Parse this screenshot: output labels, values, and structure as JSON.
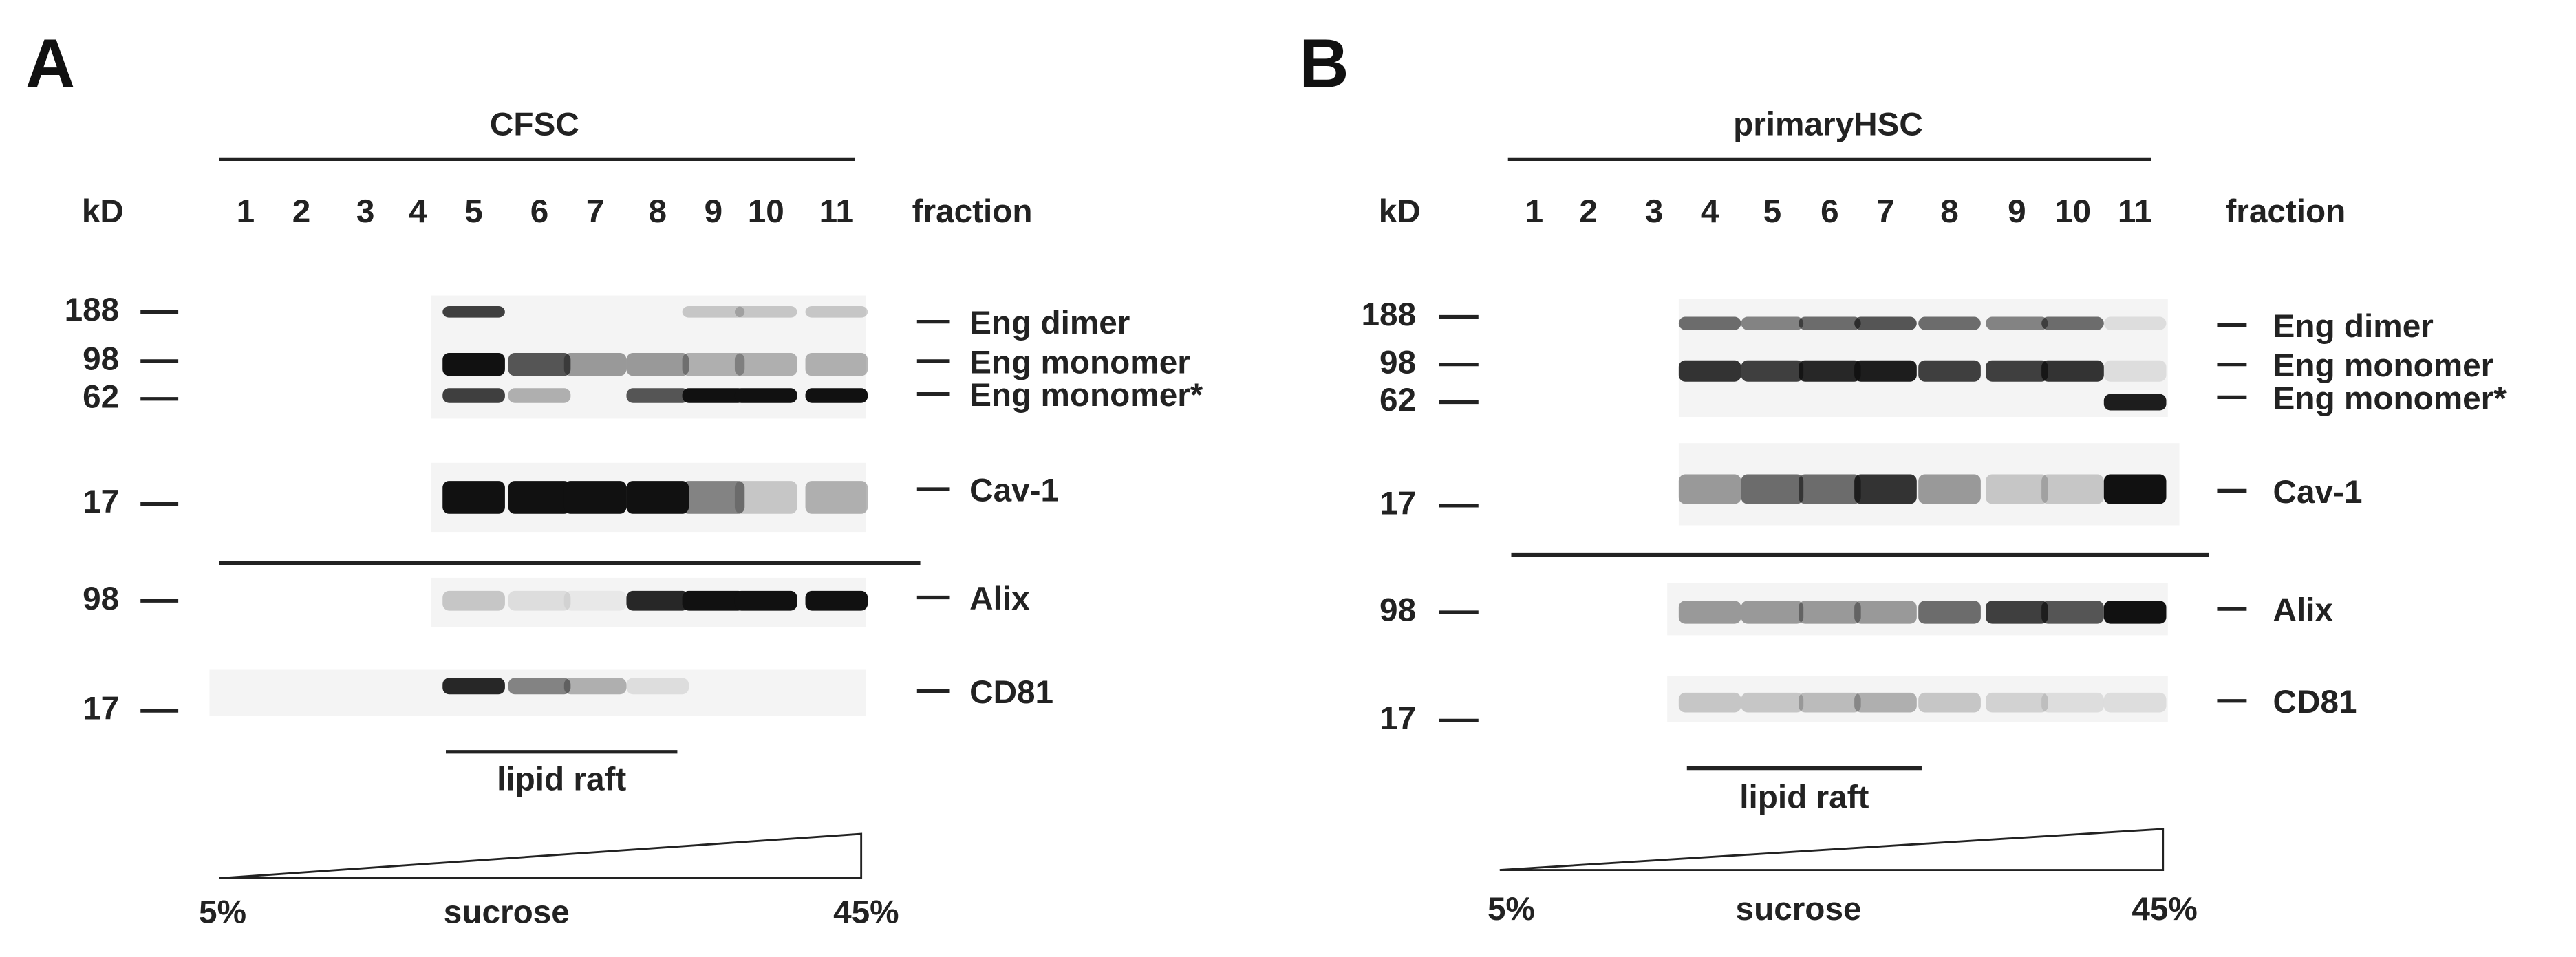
{
  "panels": [
    {
      "label": "A",
      "sample": "CFSC",
      "kd_header": "kD",
      "fraction_header": "fraction",
      "fractions": [
        "1",
        "2",
        "3",
        "4",
        "5",
        "6",
        "7",
        "8",
        "9",
        "10",
        "11"
      ],
      "markers": [
        188,
        98,
        62,
        17,
        98,
        17
      ],
      "bands": [
        "Eng dimer",
        "Eng monomer",
        "Eng monomer*",
        "Cav-1",
        "Alix",
        "CD81"
      ],
      "raft_label": "lipid raft",
      "gradient": {
        "low": "5%",
        "label": "sucrose",
        "high": "45%"
      }
    },
    {
      "label": "B",
      "sample": "primaryHSC",
      "kd_header": "kD",
      "fraction_header": "fraction",
      "fractions": [
        "1",
        "2",
        "3",
        "4",
        "5",
        "6",
        "7",
        "8",
        "9",
        "10",
        "11"
      ],
      "markers": [
        188,
        98,
        62,
        17,
        98,
        17
      ],
      "bands": [
        "Eng dimer",
        "Eng monomer",
        "Eng monomer*",
        "Cav-1",
        "Alix",
        "CD81"
      ],
      "raft_label": "lipid raft",
      "gradient": {
        "low": "5%",
        "label": "sucrose",
        "high": "45%"
      }
    }
  ]
}
